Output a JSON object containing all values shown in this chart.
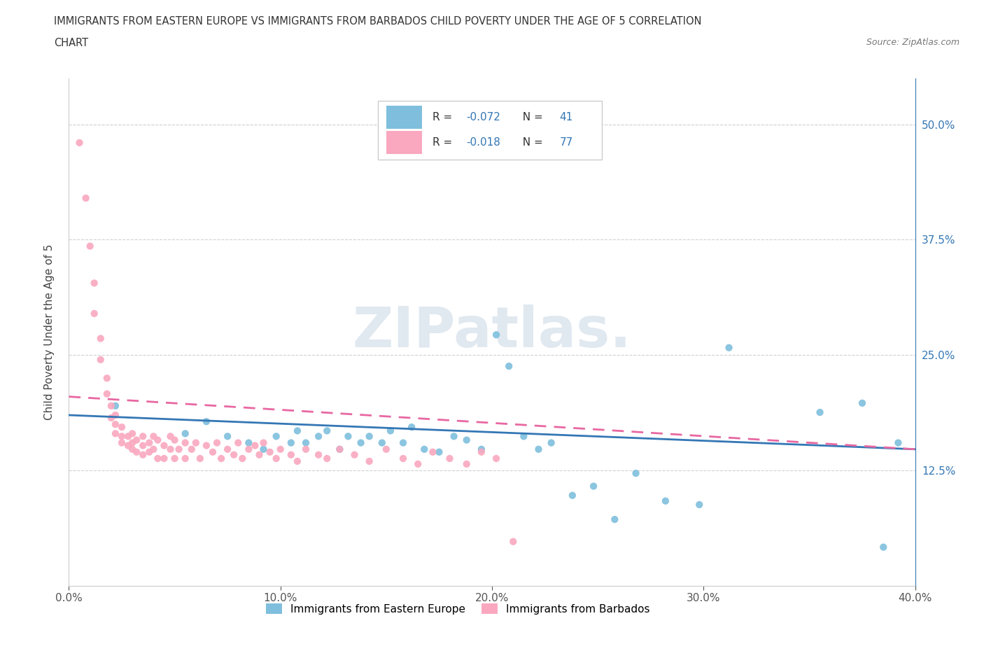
{
  "title_line1": "IMMIGRANTS FROM EASTERN EUROPE VS IMMIGRANTS FROM BARBADOS CHILD POVERTY UNDER THE AGE OF 5 CORRELATION",
  "title_line2": "CHART",
  "source": "Source: ZipAtlas.com",
  "ylabel": "Child Poverty Under the Age of 5",
  "xlim": [
    0.0,
    0.4
  ],
  "ylim": [
    0.0,
    0.55
  ],
  "ytick_vals": [
    0.0,
    0.125,
    0.25,
    0.375,
    0.5
  ],
  "xtick_vals": [
    0.0,
    0.1,
    0.2,
    0.3,
    0.4
  ],
  "xtick_labels": [
    "0.0%",
    "10.0%",
    "20.0%",
    "30.0%",
    "40.0%"
  ],
  "right_ytick_labels": [
    "",
    "12.5%",
    "25.0%",
    "37.5%",
    "50.0%"
  ],
  "legend_blue_label": "Immigrants from Eastern Europe",
  "legend_pink_label": "Immigrants from Barbados",
  "R_blue": -0.072,
  "N_blue": 41,
  "R_pink": -0.018,
  "N_pink": 77,
  "blue_color": "#7fbfdd",
  "pink_color": "#f9a8bf",
  "trend_blue_color": "#3477b5",
  "trend_pink_color": "#e868a2",
  "watermark": "ZIPatlas.",
  "blue_trend_y0": 0.185,
  "blue_trend_y1": 0.148,
  "pink_trend_y0": 0.205,
  "pink_trend_y1": 0.148,
  "blue_scatter_x": [
    0.022,
    0.055,
    0.065,
    0.075,
    0.085,
    0.092,
    0.098,
    0.105,
    0.108,
    0.112,
    0.118,
    0.122,
    0.128,
    0.132,
    0.138,
    0.142,
    0.148,
    0.152,
    0.158,
    0.162,
    0.168,
    0.175,
    0.182,
    0.188,
    0.195,
    0.202,
    0.208,
    0.215,
    0.222,
    0.228,
    0.238,
    0.248,
    0.258,
    0.268,
    0.282,
    0.298,
    0.312,
    0.355,
    0.375,
    0.385,
    0.392
  ],
  "blue_scatter_y": [
    0.195,
    0.165,
    0.178,
    0.162,
    0.155,
    0.148,
    0.162,
    0.155,
    0.168,
    0.155,
    0.162,
    0.168,
    0.148,
    0.162,
    0.155,
    0.162,
    0.155,
    0.168,
    0.155,
    0.172,
    0.148,
    0.145,
    0.162,
    0.158,
    0.148,
    0.272,
    0.238,
    0.162,
    0.148,
    0.155,
    0.098,
    0.108,
    0.072,
    0.122,
    0.092,
    0.088,
    0.258,
    0.188,
    0.198,
    0.042,
    0.155
  ],
  "pink_scatter_x": [
    0.005,
    0.008,
    0.01,
    0.012,
    0.012,
    0.015,
    0.015,
    0.018,
    0.018,
    0.02,
    0.02,
    0.022,
    0.022,
    0.022,
    0.025,
    0.025,
    0.025,
    0.028,
    0.028,
    0.03,
    0.03,
    0.03,
    0.032,
    0.032,
    0.035,
    0.035,
    0.035,
    0.038,
    0.038,
    0.04,
    0.04,
    0.042,
    0.042,
    0.045,
    0.045,
    0.048,
    0.048,
    0.05,
    0.05,
    0.052,
    0.055,
    0.055,
    0.058,
    0.06,
    0.062,
    0.065,
    0.068,
    0.07,
    0.072,
    0.075,
    0.078,
    0.08,
    0.082,
    0.085,
    0.088,
    0.09,
    0.092,
    0.095,
    0.098,
    0.1,
    0.105,
    0.108,
    0.112,
    0.118,
    0.122,
    0.128,
    0.135,
    0.142,
    0.15,
    0.158,
    0.165,
    0.172,
    0.18,
    0.188,
    0.195,
    0.202,
    0.21
  ],
  "pink_scatter_y": [
    0.48,
    0.42,
    0.368,
    0.328,
    0.295,
    0.268,
    0.245,
    0.225,
    0.208,
    0.195,
    0.182,
    0.185,
    0.175,
    0.165,
    0.172,
    0.162,
    0.155,
    0.162,
    0.152,
    0.165,
    0.155,
    0.148,
    0.158,
    0.145,
    0.162,
    0.152,
    0.142,
    0.155,
    0.145,
    0.162,
    0.148,
    0.158,
    0.138,
    0.152,
    0.138,
    0.162,
    0.148,
    0.158,
    0.138,
    0.148,
    0.155,
    0.138,
    0.148,
    0.155,
    0.138,
    0.152,
    0.145,
    0.155,
    0.138,
    0.148,
    0.142,
    0.155,
    0.138,
    0.148,
    0.152,
    0.142,
    0.155,
    0.145,
    0.138,
    0.148,
    0.142,
    0.135,
    0.148,
    0.142,
    0.138,
    0.148,
    0.142,
    0.135,
    0.148,
    0.138,
    0.132,
    0.145,
    0.138,
    0.132,
    0.145,
    0.138,
    0.048
  ]
}
